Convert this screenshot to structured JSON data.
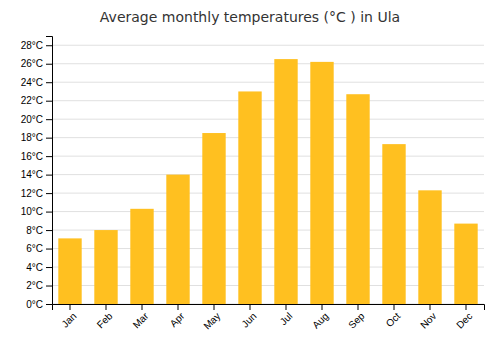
{
  "chart_data": {
    "type": "bar",
    "title": "Average monthly temperatures (°C ) in Ula",
    "categories": [
      "Jan",
      "Feb",
      "Mar",
      "Apr",
      "May",
      "Jun",
      "Jul",
      "Aug",
      "Sep",
      "Oct",
      "Nov",
      "Dec"
    ],
    "values": [
      7.1,
      8.0,
      10.3,
      14.0,
      18.5,
      23.0,
      26.5,
      26.2,
      22.7,
      17.3,
      12.3,
      8.7
    ],
    "color": "#FFC020",
    "ylim": [
      0,
      29
    ],
    "yticks": [
      {
        "value": 0,
        "label": "0°C"
      },
      {
        "value": 2,
        "label": "2°C"
      },
      {
        "value": 4,
        "label": "4°C"
      },
      {
        "value": 6,
        "label": "6°C"
      },
      {
        "value": 8,
        "label": "8°C"
      },
      {
        "value": 10,
        "label": "10°C"
      },
      {
        "value": 12,
        "label": "12°C"
      },
      {
        "value": 14,
        "label": "14°C"
      },
      {
        "value": 16,
        "label": "16°C"
      },
      {
        "value": 18,
        "label": "18°C"
      },
      {
        "value": 20,
        "label": "20°C"
      },
      {
        "value": 22,
        "label": "22°C"
      },
      {
        "value": 24,
        "label": "24°C"
      },
      {
        "value": 26,
        "label": "26°C"
      },
      {
        "value": 28,
        "label": "28°C"
      }
    ],
    "grid": true
  }
}
